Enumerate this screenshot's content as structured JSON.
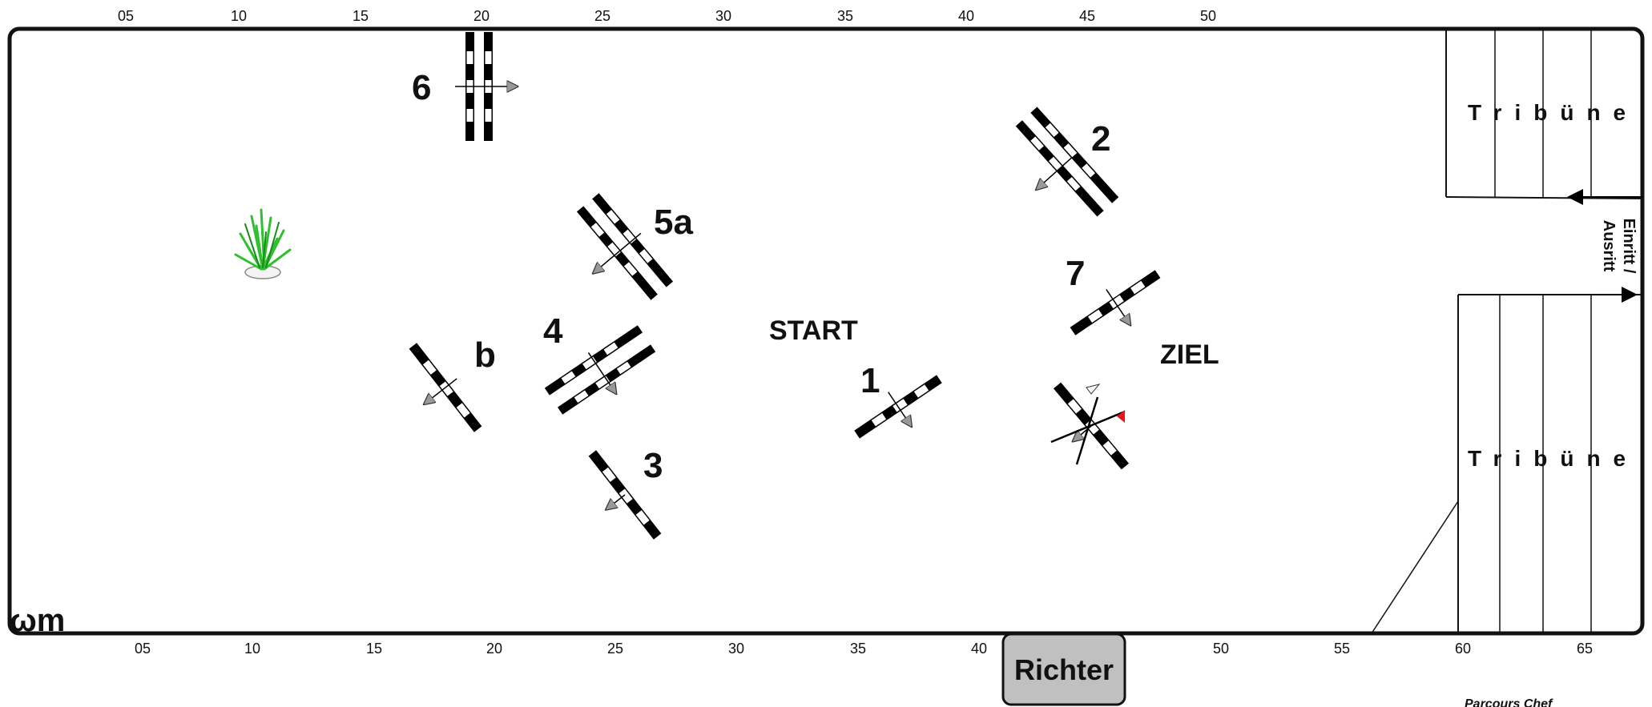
{
  "arena": {
    "top_ticks": [
      "05",
      "10",
      "15",
      "20",
      "25",
      "30",
      "35",
      "40",
      "45",
      "50"
    ],
    "bottom_ticks": [
      "05",
      "10",
      "15",
      "20",
      "25",
      "30",
      "35",
      "40",
      "45",
      "50",
      "55",
      "60",
      "65"
    ],
    "start_label": "START",
    "finish_label": "ZIEL",
    "tribune_top": "Tribüne",
    "tribune_bottom": "Tribüne",
    "entry_line1": "Einritt /",
    "entry_line2": "Ausritt",
    "judge_label": "Richter",
    "parcours_chef": "Parcours Chef",
    "logo": "ωm"
  },
  "jumps": [
    {
      "label": "1",
      "type": "vertical"
    },
    {
      "label": "2",
      "type": "oxer"
    },
    {
      "label": "3",
      "type": "vertical"
    },
    {
      "label": "4",
      "type": "oxer"
    },
    {
      "label": "5a",
      "type": "oxer"
    },
    {
      "label": "b",
      "type": "vertical"
    },
    {
      "label": "6",
      "type": "oxer"
    },
    {
      "label": "7",
      "type": "vertical"
    }
  ],
  "decoration": {
    "icon": "plant-icon"
  },
  "colors": {
    "border": "#111111",
    "pole_dark": "#000000",
    "pole_light": "#ffffff",
    "arrow": "#999999",
    "flag_red": "#e8161b",
    "judge_box": "#c0c0c0",
    "plant": "#2fbf2f"
  }
}
